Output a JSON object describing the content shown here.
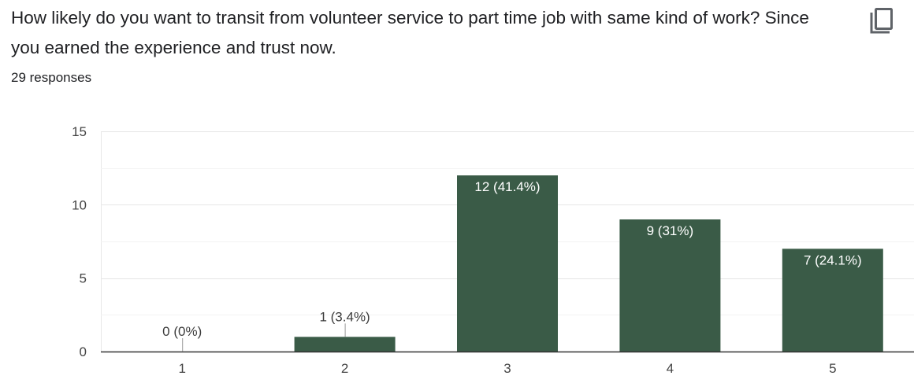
{
  "question": {
    "title": "How likely do you want to transit from volunteer service to part time job with same kind of work? Since you earned the experience and trust now.",
    "responses": "29 responses",
    "copy_icon": "copy-icon"
  },
  "colors": {
    "bar": "#3a5b47",
    "grid": "#e8e8e8",
    "axis": "#333333",
    "text": "#202124"
  },
  "chart_data": {
    "type": "bar",
    "categories": [
      "1",
      "2",
      "3",
      "4",
      "5"
    ],
    "values": [
      0,
      1,
      12,
      9,
      7
    ],
    "data_labels": [
      "0 (0%)",
      "1 (3.4%)",
      "12 (41.4%)",
      "9 (31%)",
      "7 (24.1%)"
    ],
    "title": "",
    "xlabel": "",
    "ylabel": "",
    "ylim": [
      0,
      15
    ],
    "yticks": [
      0,
      5,
      10,
      15
    ],
    "grid": true,
    "legend": "none"
  }
}
